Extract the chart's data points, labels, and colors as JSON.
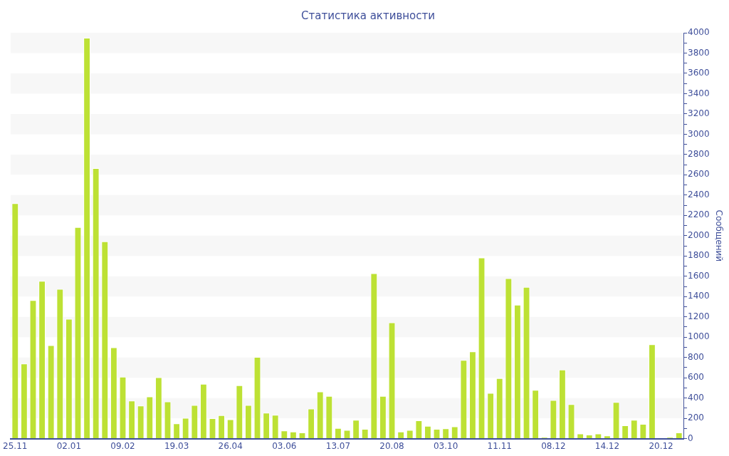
{
  "chart_data": {
    "type": "bar",
    "title": "Статистика активности",
    "ylabel": "Сообщений",
    "categories": [
      "25.11",
      null,
      null,
      null,
      null,
      null,
      "02.01",
      null,
      null,
      null,
      null,
      null,
      "09.02",
      null,
      null,
      null,
      null,
      null,
      "19.03",
      null,
      null,
      null,
      null,
      null,
      "26.04",
      null,
      null,
      null,
      null,
      null,
      "03.06",
      null,
      null,
      null,
      null,
      null,
      "13.07",
      null,
      null,
      null,
      null,
      null,
      "20.08",
      null,
      null,
      null,
      null,
      null,
      "03.10",
      null,
      null,
      null,
      null,
      null,
      "11.11",
      null,
      null,
      null,
      null,
      null,
      "08.12",
      null,
      null,
      null,
      null,
      null,
      "14.12",
      null,
      null,
      null,
      null,
      null,
      "20.12",
      null,
      null
    ],
    "values": [
      2320,
      740,
      1365,
      1555,
      920,
      1475,
      1180,
      2085,
      3950,
      2665,
      1945,
      900,
      610,
      375,
      325,
      415,
      605,
      365,
      150,
      205,
      330,
      540,
      200,
      230,
      190,
      525,
      330,
      805,
      255,
      235,
      80,
      70,
      60,
      295,
      465,
      420,
      105,
      85,
      185,
      95,
      1630,
      420,
      1145,
      70,
      85,
      180,
      125,
      95,
      100,
      120,
      775,
      860,
      1785,
      450,
      595,
      1580,
      1320,
      1495,
      480,
      15,
      380,
      680,
      340,
      50,
      40,
      50,
      30,
      360,
      130,
      185,
      145,
      930,
      5,
      15,
      60
    ],
    "color": "#bde134",
    "ylim": [
      0,
      4000
    ],
    "yticks": [
      0,
      {
        "value": 100,
        "label": null
      },
      200,
      {
        "value": 300,
        "label": null
      },
      400,
      {
        "value": 500,
        "label": null
      },
      600,
      {
        "value": 700,
        "label": null
      },
      800,
      {
        "value": 900,
        "label": null
      },
      1000,
      {
        "value": 1100,
        "label": null
      },
      1200,
      {
        "value": 1300,
        "label": null
      },
      1400,
      {
        "value": 1500,
        "label": null
      },
      1600,
      {
        "value": 1700,
        "label": null
      },
      1800,
      {
        "value": 1900,
        "label": null
      },
      2000,
      {
        "value": 2100,
        "label": null
      },
      2200,
      {
        "value": 2300,
        "label": null
      },
      2400,
      {
        "value": 2500,
        "label": null
      },
      2600,
      {
        "value": 2700,
        "label": null
      },
      2800,
      {
        "value": 2900,
        "label": null
      },
      3000,
      {
        "value": 3100,
        "label": null
      },
      3200,
      {
        "value": 3300,
        "label": null
      },
      3400,
      {
        "value": 3500,
        "label": null
      },
      3600,
      {
        "value": 3700,
        "label": null
      },
      3800,
      {
        "value": 3900,
        "label": null
      },
      4000
    ],
    "bands": [
      {
        "axis": "y",
        "from": 200,
        "to": 400,
        "color": "#f7f7f7"
      },
      {
        "axis": "y",
        "from": 600,
        "to": 800,
        "color": "#f7f7f7"
      },
      {
        "axis": "y",
        "from": 1000,
        "to": 1200,
        "color": "#f7f7f7"
      },
      {
        "axis": "y",
        "from": 1400,
        "to": 1600,
        "color": "#f7f7f7"
      },
      {
        "axis": "y",
        "from": 1800,
        "to": 2000,
        "color": "#f7f7f7"
      },
      {
        "axis": "y",
        "from": 2200,
        "to": 2400,
        "color": "#f7f7f7"
      },
      {
        "axis": "y",
        "from": 2600,
        "to": 2800,
        "color": "#f7f7f7"
      },
      {
        "axis": "y",
        "from": 3000,
        "to": 3200,
        "color": "#f7f7f7"
      },
      {
        "axis": "y",
        "from": 3400,
        "to": 3600,
        "color": "#f7f7f7"
      },
      {
        "axis": "y",
        "from": 3800,
        "to": 4000,
        "color": "#f7f7f7"
      }
    ]
  }
}
